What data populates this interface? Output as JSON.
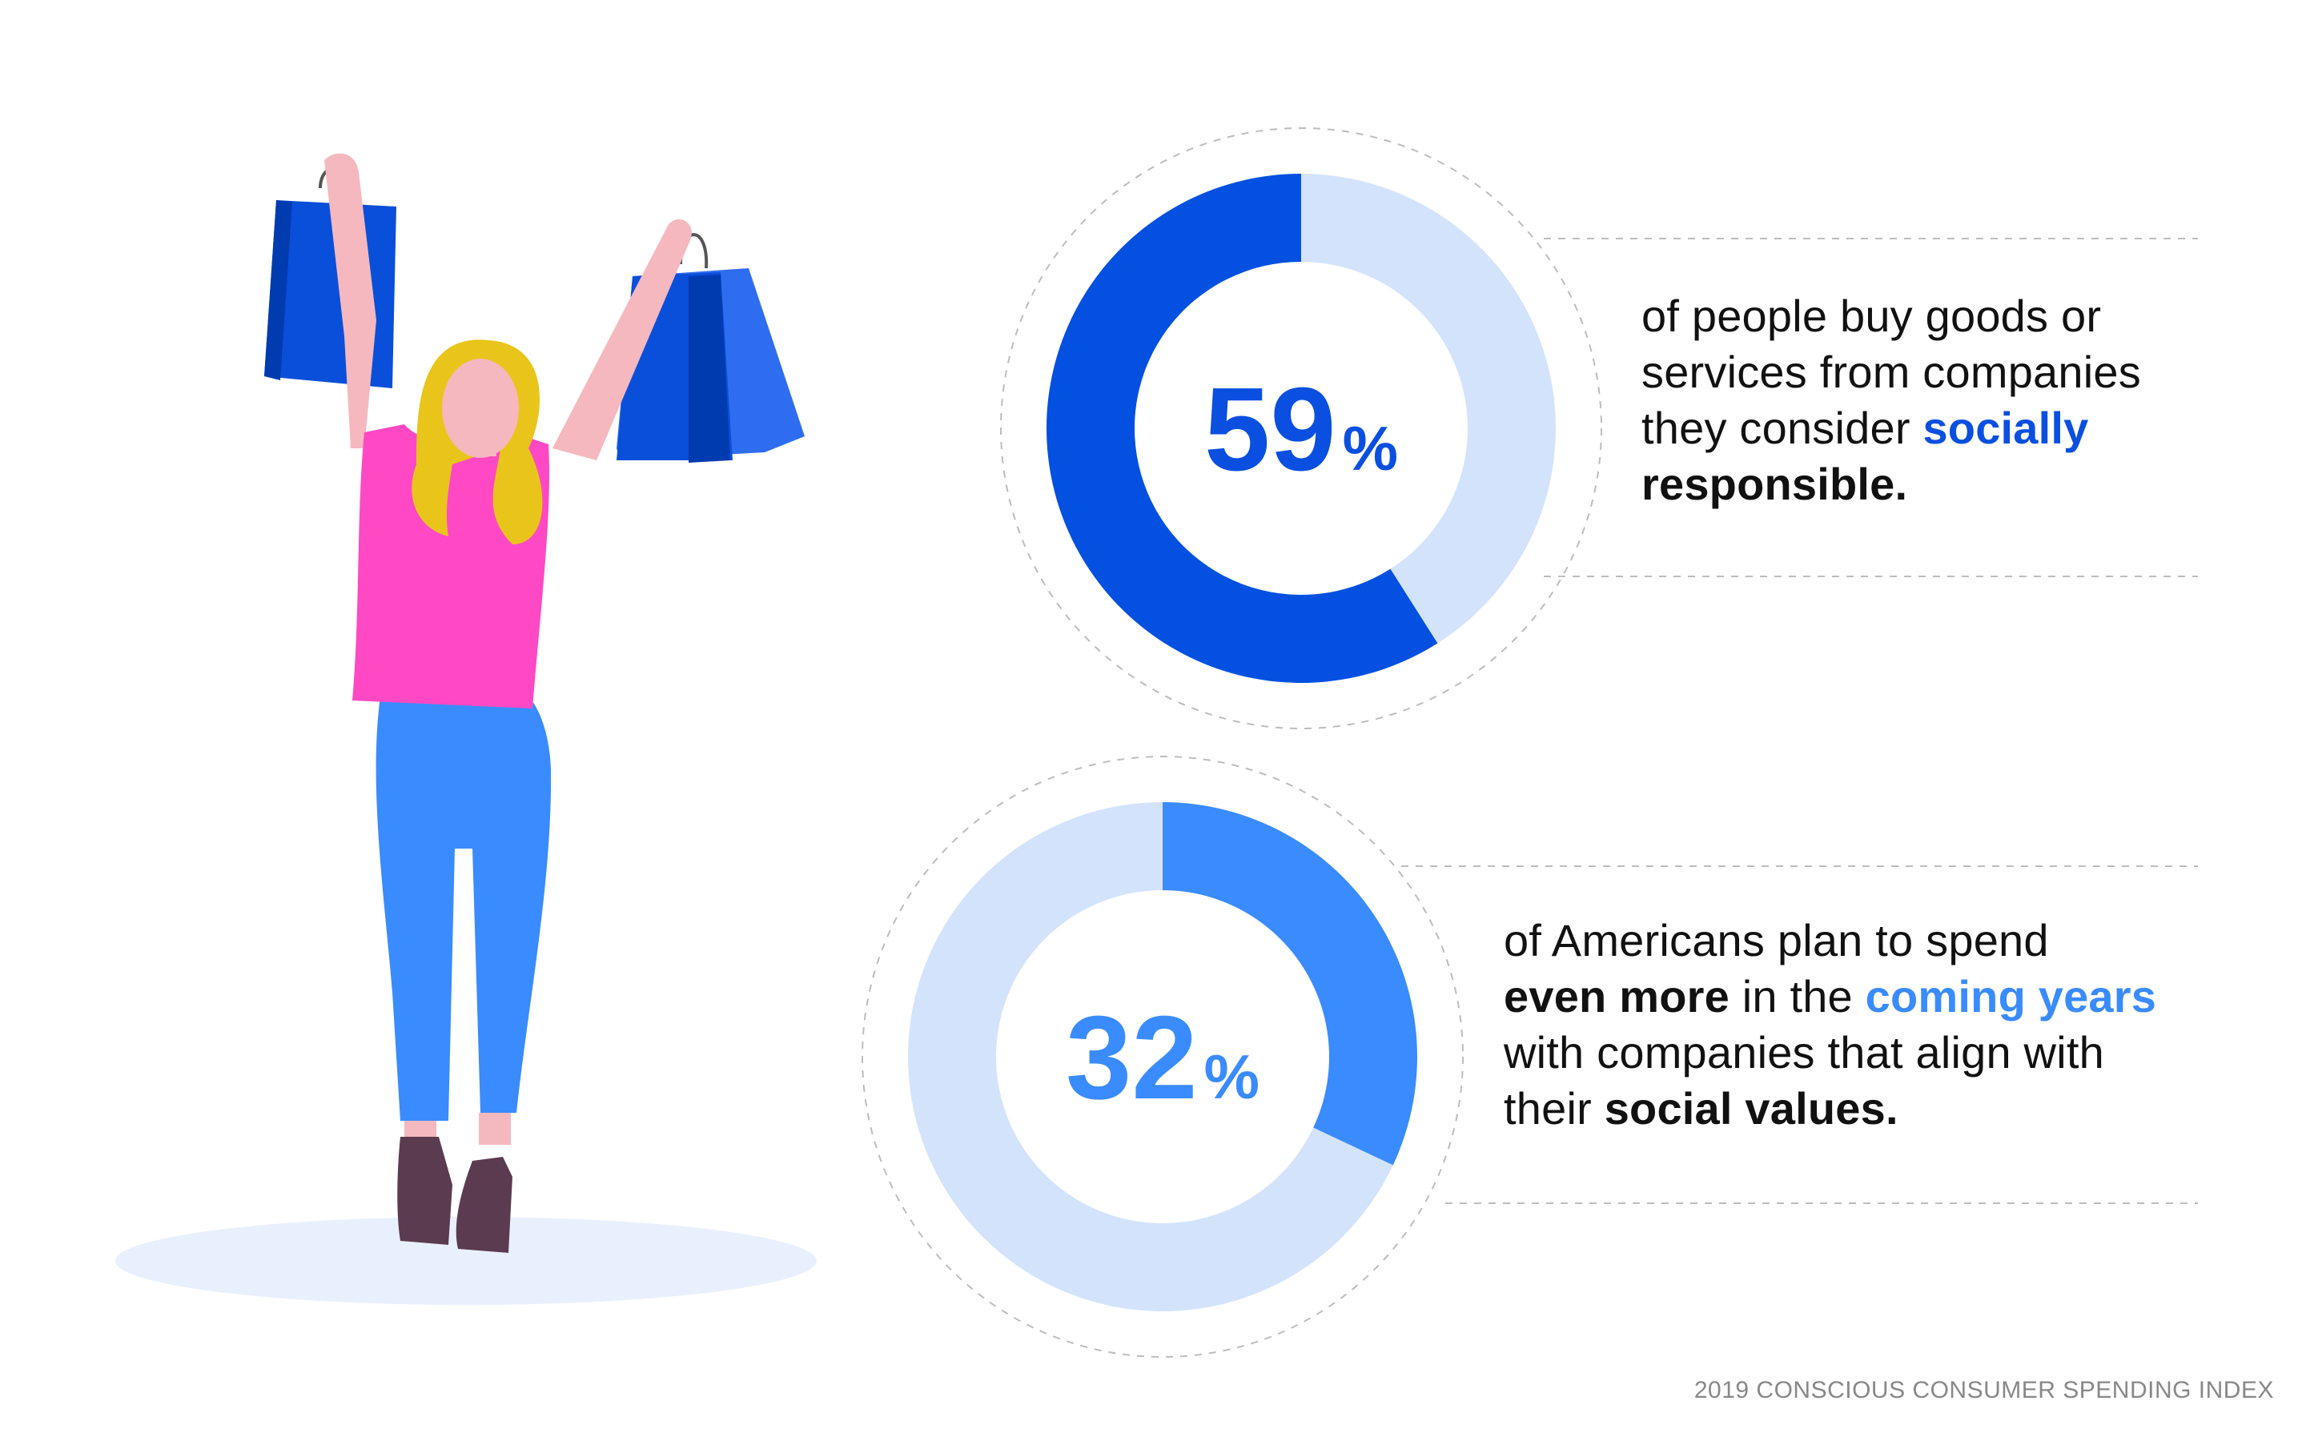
{
  "colors": {
    "donut1_primary": "#0450e0",
    "donut1_track": "#d3e3fc",
    "donut2_primary": "#3a8bfd",
    "donut2_track": "#d3e3fc",
    "dash": "#bdbdbd",
    "highlight_dark": "#0b4fe0",
    "highlight_light": "#3a8bfd",
    "text": "#111111",
    "footer": "#888888"
  },
  "chart_data": [
    {
      "type": "pie",
      "variant": "donut",
      "value": 59,
      "max": 100,
      "number_label": "59",
      "unit_label": "%",
      "segments": [
        {
          "label": "59%",
          "value": 59
        },
        {
          "label": "",
          "value": 41
        }
      ]
    },
    {
      "type": "pie",
      "variant": "donut",
      "value": 32,
      "max": 100,
      "number_label": "32",
      "unit_label": "%",
      "segments": [
        {
          "label": "32%",
          "value": 32
        },
        {
          "label": "",
          "value": 68
        }
      ]
    }
  ],
  "stat1": {
    "line1": "of people buy goods or",
    "line2": "services from companies",
    "line3_pre": "they consider ",
    "line3_highlight": "socially",
    "line4_bold": "responsible."
  },
  "stat2": {
    "line1": "of Americans plan to spend",
    "line2_bold": "even more",
    "line2_mid": " in the ",
    "line2_highlight": "coming years",
    "line3": "with companies that align with",
    "line4_pre": "their ",
    "line4_bold": "social values."
  },
  "footer": "2019 CONSCIOUS CONSUMER SPENDING INDEX"
}
